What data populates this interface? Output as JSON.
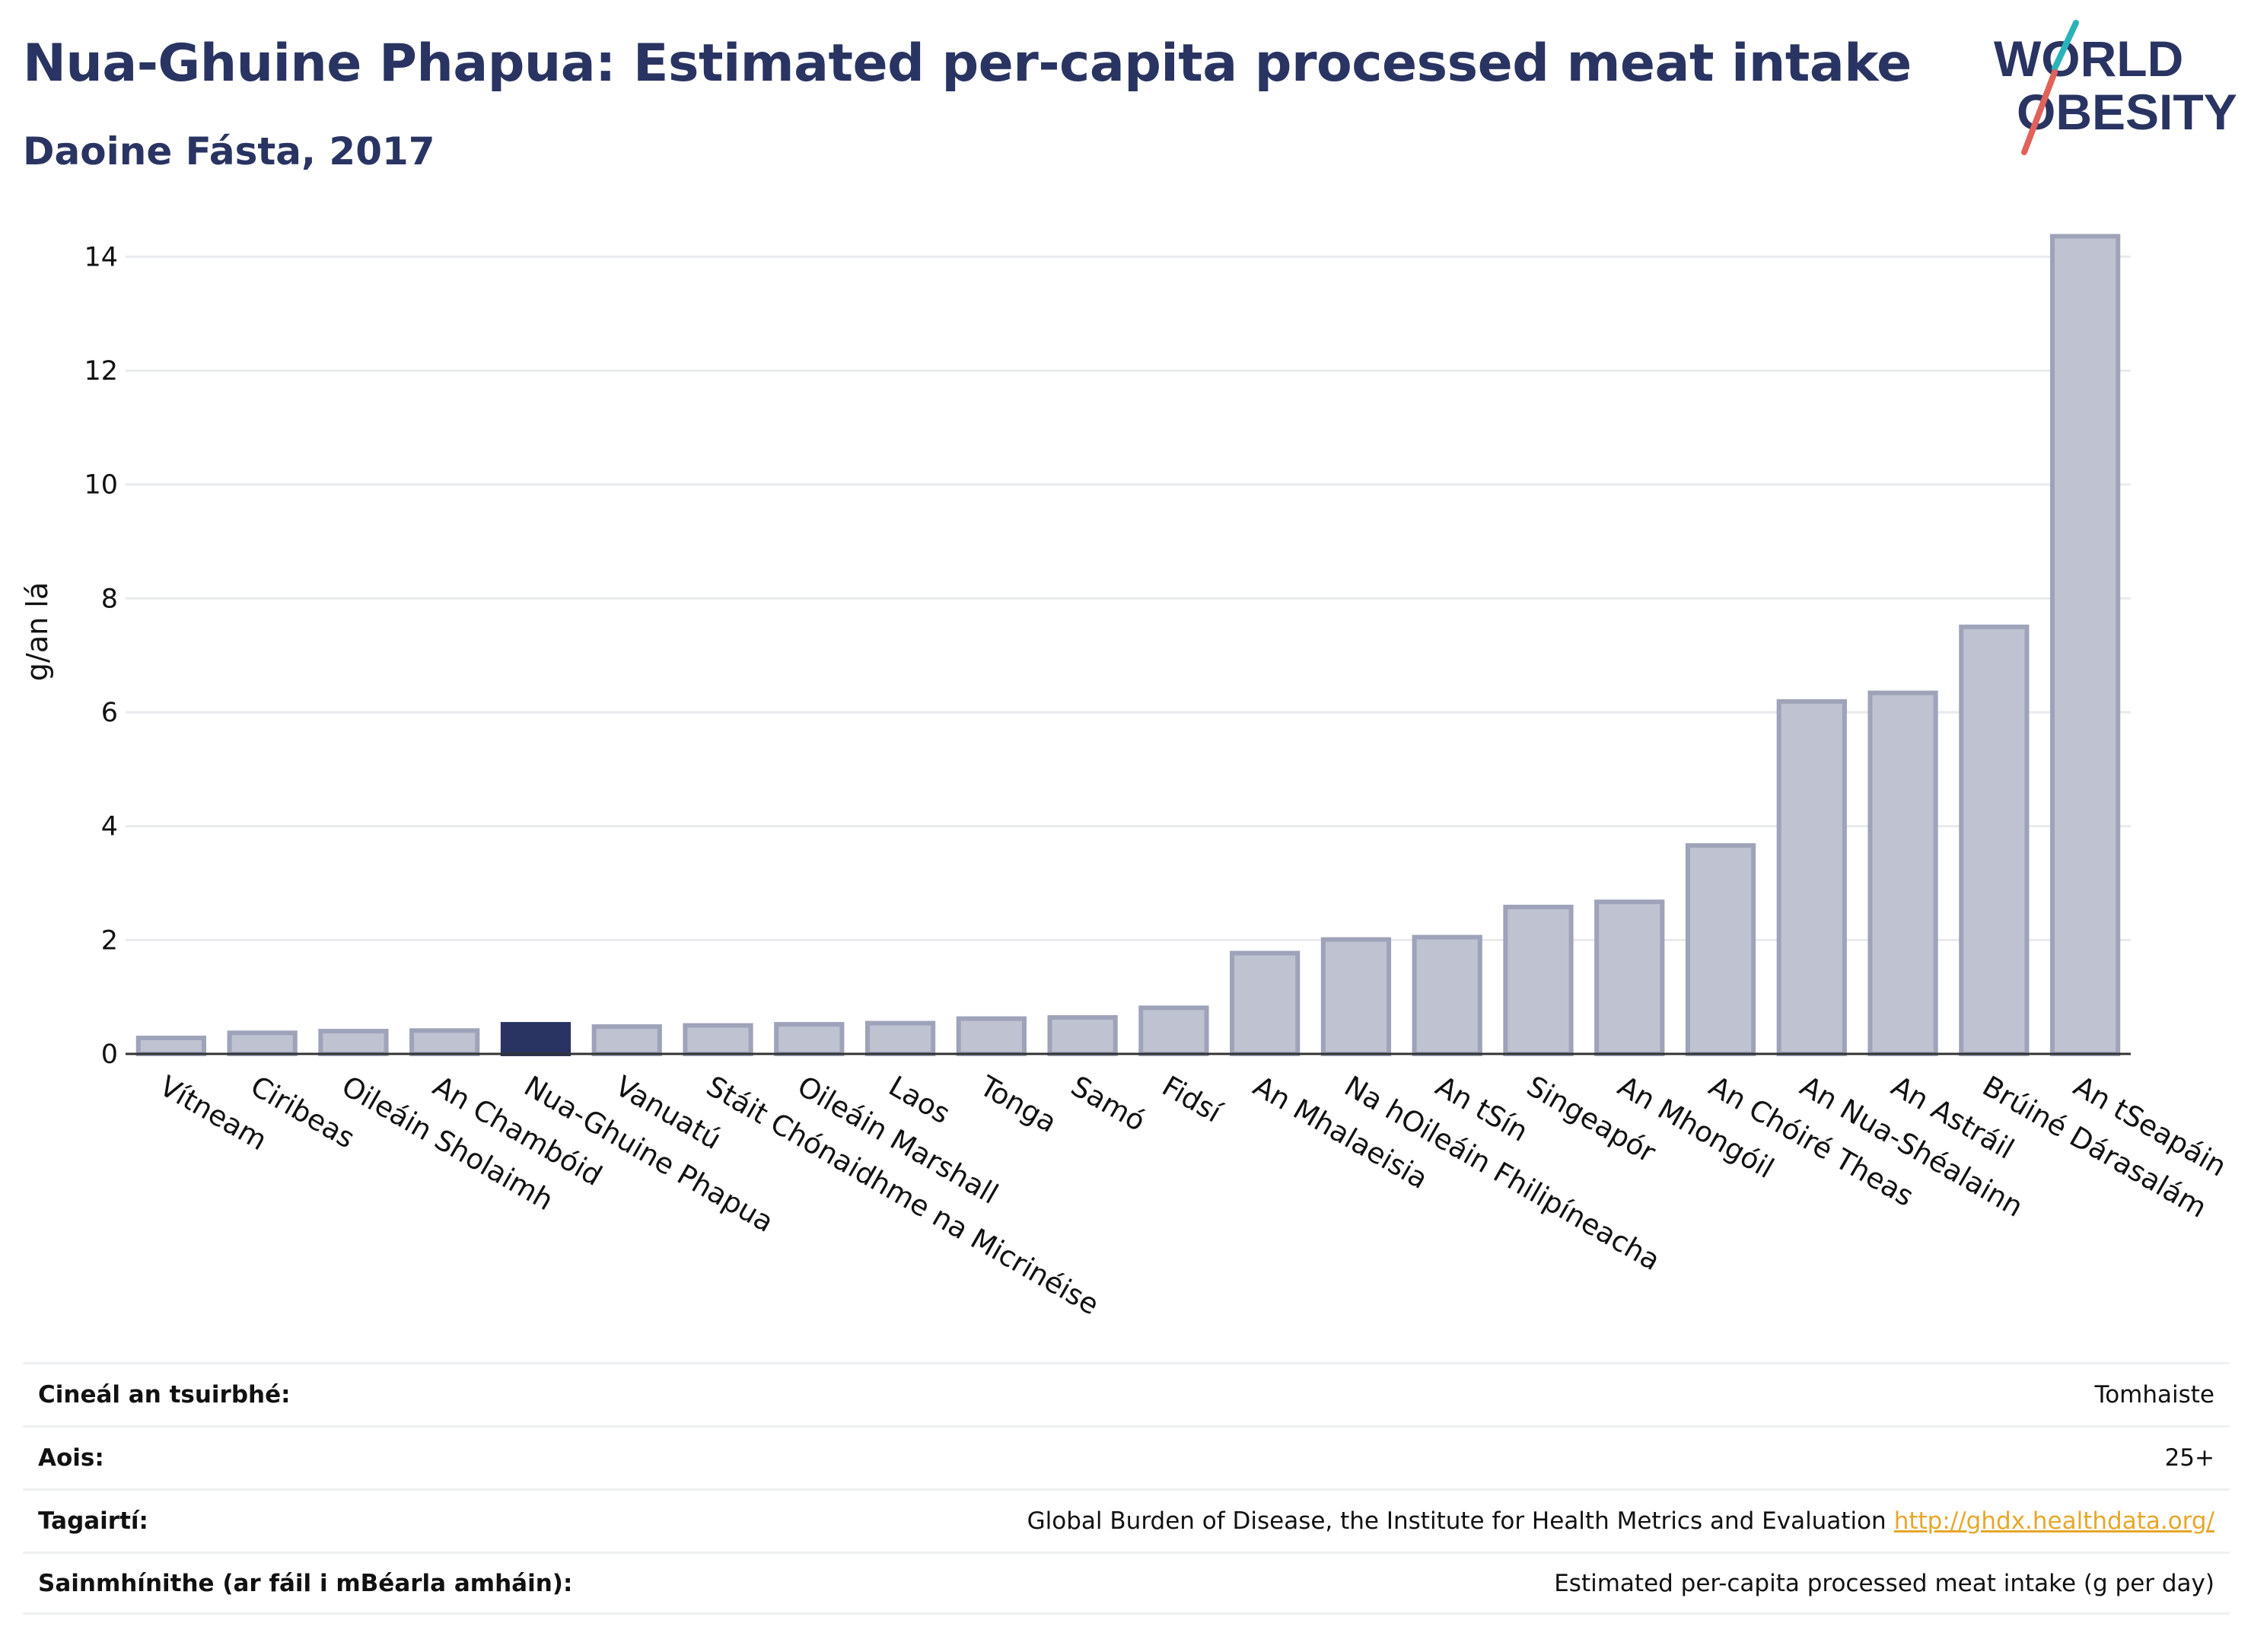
{
  "header": {
    "title": "Nua-Ghuine Phapua: Estimated per-capita processed meat intake",
    "subtitle": "Daoine Fásta, 2017"
  },
  "logo": {
    "line1": "WORLD",
    "line2": "OBESITY",
    "accent_teal": "#2ab3b8",
    "accent_red": "#e0625a",
    "text_color": "#2a3462"
  },
  "colors": {
    "bar": "#2a3462",
    "bar_fill_faded": "#bfc2d0",
    "bar_stroke_faded": "#9ea3b9",
    "highlight": "#2a3462"
  },
  "chart_data": {
    "type": "bar",
    "title": "Nua-Ghuine Phapua: Estimated per-capita processed meat intake",
    "subtitle": "Daoine Fásta, 2017",
    "ylabel": "g/an lá",
    "xlabel": "",
    "ylim": [
      0,
      14.5
    ],
    "yticks": [
      0,
      2,
      4,
      6,
      8,
      10,
      12,
      14
    ],
    "grid": true,
    "highlight_category": "Nua-Ghuine Phapua",
    "categories": [
      "Vítneam",
      "Ciribeas",
      "Oileáin Sholaimh",
      "An Chambóid",
      "Nua-Ghuine Phapua",
      "Vanuatú",
      "Stáit Chónaidhme na Micrinéise",
      "Oileáin Marshall",
      "Laos",
      "Tonga",
      "Samó",
      "Fidsí",
      "An Mhalaeisia",
      "Na hOileáin Fhilipíneacha",
      "An tSín",
      "Singeapór",
      "An Mhongóil",
      "An Chóiré Theas",
      "An Nua-Shéalainn",
      "An Astráil",
      "Brúiné Dárasalám",
      "An tSeapáin"
    ],
    "values": [
      0.28,
      0.37,
      0.4,
      0.41,
      0.52,
      0.48,
      0.5,
      0.52,
      0.54,
      0.62,
      0.64,
      0.81,
      1.77,
      2.01,
      2.05,
      2.58,
      2.67,
      3.66,
      6.19,
      6.34,
      7.5,
      14.36
    ]
  },
  "meta": [
    {
      "key": "Cineál an tsuirbhé:",
      "value": "Tomhaiste",
      "link": ""
    },
    {
      "key": "Aois:",
      "value": "25+",
      "link": ""
    },
    {
      "key": "Tagairtí:",
      "value": "Global Burden of Disease, the Institute for Health Metrics and Evaluation",
      "link": "http://ghdx.healthdata.org/"
    },
    {
      "key": "Sainmhínithe (ar fáil i mBéarla amháin):",
      "value": "Estimated per-capita processed meat intake (g per day)",
      "link": ""
    }
  ]
}
